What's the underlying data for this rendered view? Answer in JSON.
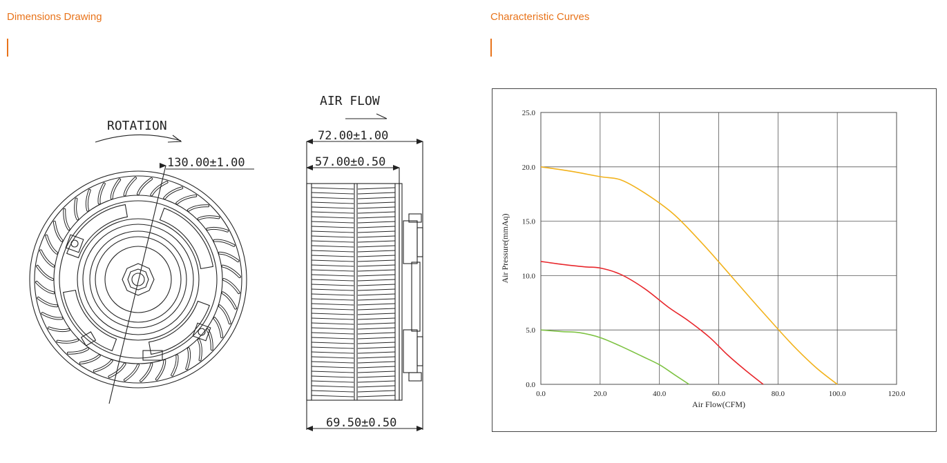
{
  "sections": {
    "left_title": "Dimensions Drawing",
    "right_title": "Characteristic Curves"
  },
  "drawing": {
    "rotation_label": "ROTATION",
    "airflow_label": "AIR FLOW",
    "dim_diameter": "130.00±1.00",
    "dim_total_width": "72.00±1.00",
    "dim_wheel_width": "57.00±0.50",
    "dim_base_width": "69.50±0.50"
  },
  "colors": {
    "accent": "#e8731a",
    "series_yellow": "#f2b21b",
    "series_red": "#e8262b",
    "series_green": "#7dc242"
  },
  "chart_data": {
    "type": "line",
    "title": "",
    "xlabel": "Air Flow(CFM)",
    "ylabel": "Air Pressure(mmAq)",
    "xlim": [
      0,
      120
    ],
    "ylim": [
      0,
      25
    ],
    "xticks": [
      "0.0",
      "20.0",
      "40.0",
      "60.0",
      "80.0",
      "100.0",
      "120.0"
    ],
    "yticks": [
      "0.0",
      "5.0",
      "10.0",
      "15.0",
      "20.0",
      "25.0"
    ],
    "grid": true,
    "series": [
      {
        "color": "#f2b21b",
        "points": [
          [
            0,
            20.0
          ],
          [
            10,
            19.6
          ],
          [
            20,
            19.1
          ],
          [
            27,
            18.8
          ],
          [
            35,
            17.6
          ],
          [
            45,
            15.6
          ],
          [
            55,
            12.8
          ],
          [
            65,
            9.7
          ],
          [
            75,
            6.6
          ],
          [
            85,
            3.6
          ],
          [
            93,
            1.5
          ],
          [
            100,
            0
          ]
        ]
      },
      {
        "color": "#e8262b",
        "points": [
          [
            0,
            11.3
          ],
          [
            8,
            11.0
          ],
          [
            15,
            10.8
          ],
          [
            20,
            10.7
          ],
          [
            27,
            10.1
          ],
          [
            35,
            8.8
          ],
          [
            43,
            7.1
          ],
          [
            50,
            5.8
          ],
          [
            57,
            4.3
          ],
          [
            63,
            2.7
          ],
          [
            69,
            1.3
          ],
          [
            75,
            0
          ]
        ]
      },
      {
        "color": "#7dc242",
        "points": [
          [
            0,
            5.0
          ],
          [
            7,
            4.85
          ],
          [
            13,
            4.75
          ],
          [
            20,
            4.3
          ],
          [
            27,
            3.5
          ],
          [
            34,
            2.6
          ],
          [
            40,
            1.8
          ],
          [
            45,
            0.9
          ],
          [
            50,
            0
          ]
        ]
      }
    ]
  }
}
